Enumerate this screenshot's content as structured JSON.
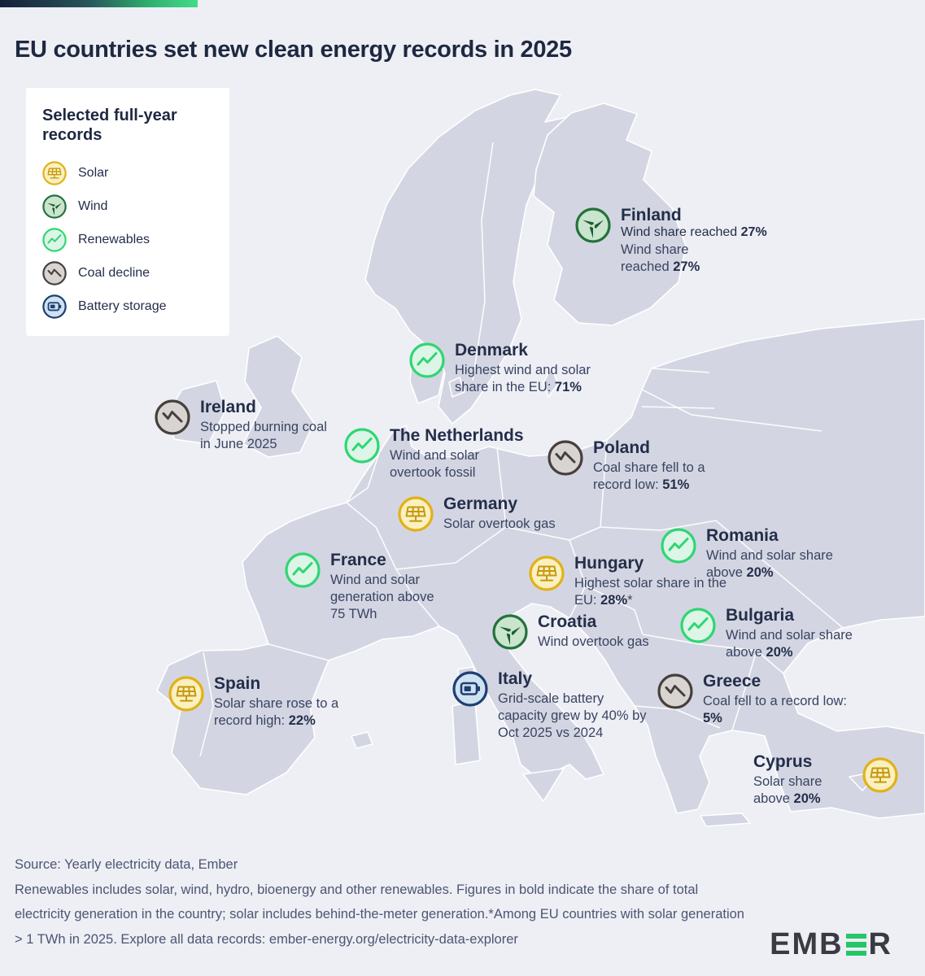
{
  "header": {
    "title": "EU countries set new clean energy records in 2025"
  },
  "legend": {
    "title": "Selected full-year records",
    "items": [
      {
        "type": "solar",
        "label": "Solar"
      },
      {
        "type": "wind",
        "label": "Wind"
      },
      {
        "type": "renewables",
        "label": "Renewables"
      },
      {
        "type": "coal",
        "label": "Coal decline"
      },
      {
        "type": "battery",
        "label": "Battery storage"
      }
    ]
  },
  "countries": [
    {
      "name": "Finland",
      "icon": "wind",
      "text_pre": "Wind share reached ",
      "text_bold": "27%",
      "text_post": ""
    },
    {
      "name": "Denmark",
      "icon": "renewables",
      "text_pre": "Highest wind and solar share in the EU: ",
      "text_bold": "71%",
      "text_post": ""
    },
    {
      "name": "Ireland",
      "icon": "coal",
      "text_pre": "Stopped burning coal in June 2025",
      "text_bold": "",
      "text_post": ""
    },
    {
      "name": "The Netherlands",
      "icon": "renewables",
      "text_pre": "Wind and solar overtook fossil",
      "text_bold": "",
      "text_post": ""
    },
    {
      "name": "Poland",
      "icon": "coal",
      "text_pre": "Coal share fell to a record low: ",
      "text_bold": "51%",
      "text_post": ""
    },
    {
      "name": "Germany",
      "icon": "solar",
      "text_pre": "Solar overtook gas",
      "text_bold": "",
      "text_post": ""
    },
    {
      "name": "France",
      "icon": "renewables",
      "text_pre": "Wind and solar generation above 75 TWh",
      "text_bold": "",
      "text_post": ""
    },
    {
      "name": "Hungary",
      "icon": "solar",
      "text_pre": "Highest solar share in the EU: ",
      "text_bold": "28%",
      "text_post": "*"
    },
    {
      "name": "Romania",
      "icon": "renewables",
      "text_pre": "Wind and solar share above ",
      "text_bold": "20%",
      "text_post": ""
    },
    {
      "name": "Croatia",
      "icon": "wind",
      "text_pre": "Wind overtook gas",
      "text_bold": "",
      "text_post": ""
    },
    {
      "name": "Bulgaria",
      "icon": "renewables",
      "text_pre": "Wind and solar share above ",
      "text_bold": "20%",
      "text_post": ""
    },
    {
      "name": "Spain",
      "icon": "solar",
      "text_pre": "Solar share rose to a record high: ",
      "text_bold": "22%",
      "text_post": ""
    },
    {
      "name": "Italy",
      "icon": "battery",
      "text_pre": "Grid-scale battery capacity grew by 40% by Oct 2025 vs 2024",
      "text_bold": "",
      "text_post": ""
    },
    {
      "name": "Greece",
      "icon": "coal",
      "text_pre": "Coal fell to a record low: ",
      "text_bold": "5%",
      "text_post": ""
    },
    {
      "name": "Cyprus",
      "icon": "solar",
      "text_pre": "Solar share above ",
      "text_bold": "20%",
      "text_post": ""
    }
  ],
  "footer": {
    "source_line": "Source: Yearly electricity data, Ember",
    "note": "Renewables includes solar, wind, hydro, bioenergy and other renewables. Figures in bold indicate the share of total electricity generation in the country; solar includes behind-the-meter generation.*Among EU countries with solar generation > 1 TWh in 2025. Explore all data records: ember-energy.org/electricity-data-explorer",
    "logo_prefix": "EMB",
    "logo_suffix": "R"
  },
  "colors": {
    "title_navy": "#1e2840",
    "land": "#d3d6e2",
    "sea": "#edeff5",
    "solar_ring": "#e2b117",
    "solar_fill": "#fbf0bf",
    "solar_glyph": "#c6980f",
    "wind_ring": "#24723c",
    "wind_fill": "#c9e5cd",
    "wind_glyph": "#1f5c33",
    "renewables_ring": "#2fd673",
    "renewables_fill": "#dcf5e7",
    "coal_ring": "#463f3c",
    "coal_fill": "#d8d4d1",
    "battery_ring": "#1d3f72",
    "battery_fill": "#cfe2f1",
    "logo_green": "#26c666",
    "topbar_gradient_start": "#151f3a",
    "topbar_gradient_end": "#43dd86"
  }
}
